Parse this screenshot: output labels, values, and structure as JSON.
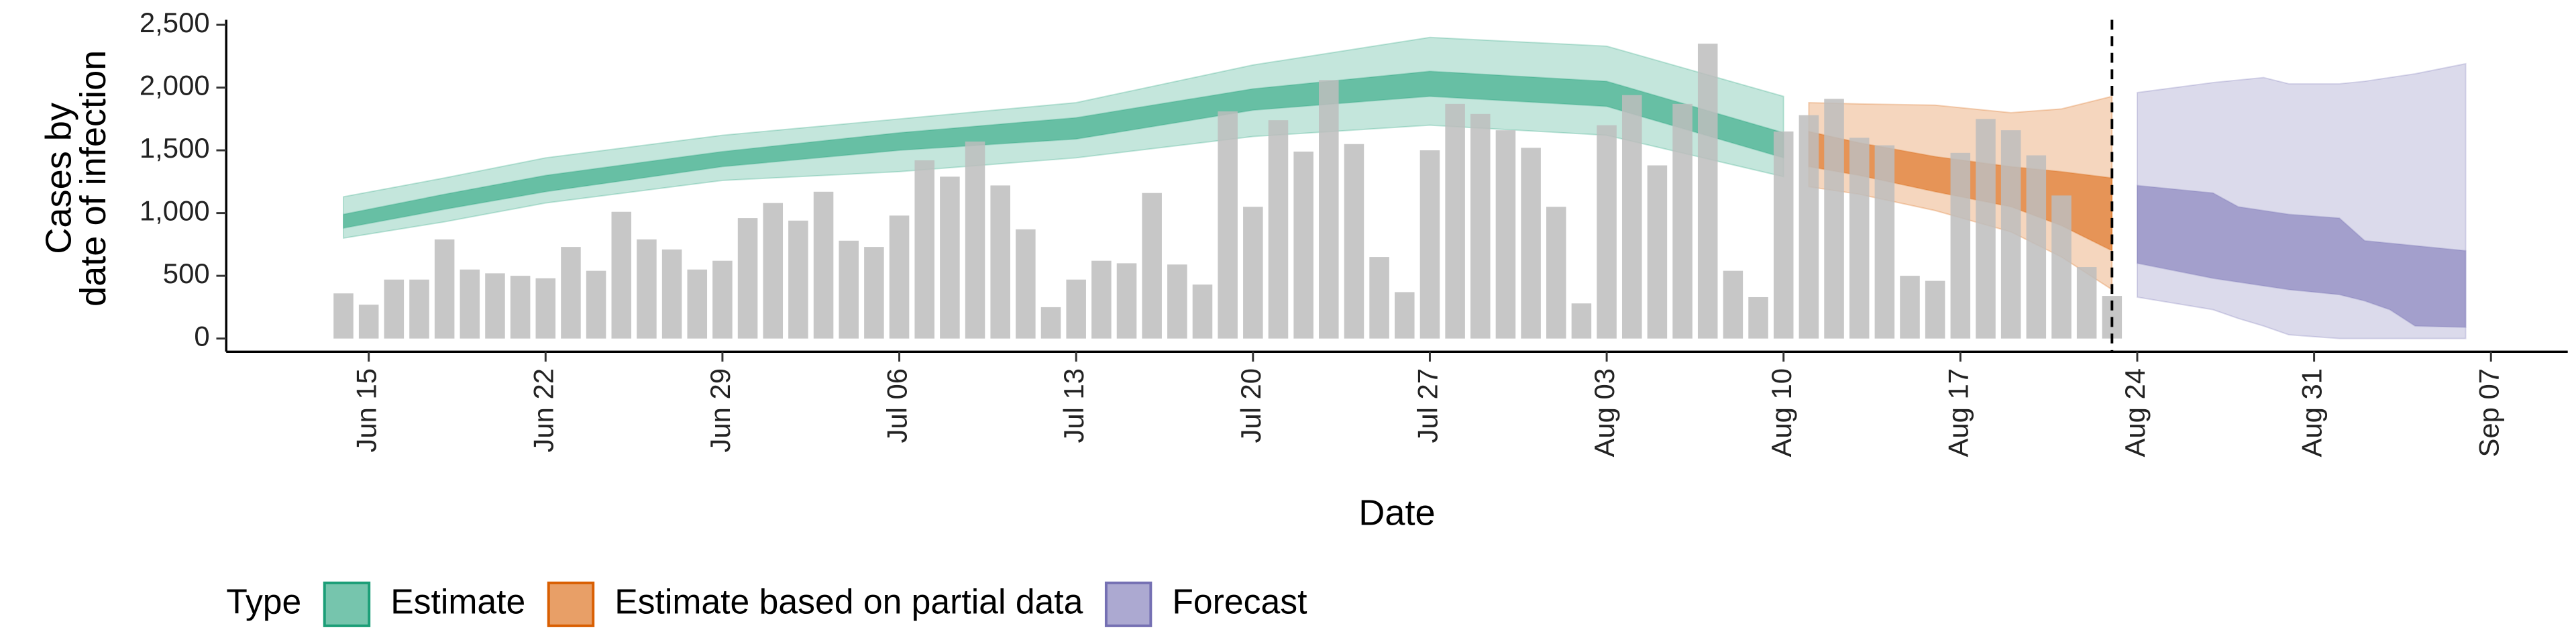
{
  "chart_data": {
    "type": "bar",
    "x_label": "Date",
    "y_label": [
      "Cases by",
      "date of infection"
    ],
    "legend_title": "Type",
    "x": [
      "Jun 14",
      "Jun 15",
      "Jun 16",
      "Jun 17",
      "Jun 18",
      "Jun 19",
      "Jun 20",
      "Jun 21",
      "Jun 22",
      "Jun 23",
      "Jun 24",
      "Jun 25",
      "Jun 26",
      "Jun 27",
      "Jun 28",
      "Jun 29",
      "Jun 30",
      "Jul 01",
      "Jul 02",
      "Jul 03",
      "Jul 04",
      "Jul 05",
      "Jul 06",
      "Jul 07",
      "Jul 08",
      "Jul 09",
      "Jul 10",
      "Jul 11",
      "Jul 12",
      "Jul 13",
      "Jul 14",
      "Jul 15",
      "Jul 16",
      "Jul 17",
      "Jul 18",
      "Jul 19",
      "Jul 20",
      "Jul 21",
      "Jul 22",
      "Jul 23",
      "Jul 24",
      "Jul 25",
      "Jul 26",
      "Jul 27",
      "Jul 28",
      "Jul 29",
      "Jul 30",
      "Jul 31",
      "Aug 01",
      "Aug 02",
      "Aug 03",
      "Aug 04",
      "Aug 05",
      "Aug 06",
      "Aug 07",
      "Aug 08",
      "Aug 09",
      "Aug 10",
      "Aug 11",
      "Aug 12",
      "Aug 13",
      "Aug 14",
      "Aug 15",
      "Aug 16",
      "Aug 17",
      "Aug 18",
      "Aug 19",
      "Aug 20",
      "Aug 21",
      "Aug 22",
      "Aug 23",
      "Aug 24",
      "Aug 25",
      "Aug 26",
      "Aug 27",
      "Aug 28",
      "Aug 29",
      "Aug 30",
      "Aug 31",
      "Sep 01",
      "Sep 02",
      "Sep 03",
      "Sep 04",
      "Sep 05",
      "Sep 06",
      "Sep 07"
    ],
    "values": [
      360,
      270,
      470,
      470,
      790,
      550,
      520,
      500,
      480,
      730,
      540,
      1010,
      790,
      710,
      550,
      620,
      960,
      1080,
      940,
      1170,
      780,
      730,
      980,
      1420,
      1290,
      1570,
      1220,
      870,
      250,
      470,
      620,
      600,
      1160,
      590,
      430,
      1810,
      1050,
      1740,
      1490,
      2060,
      1550,
      650,
      370,
      1500,
      1870,
      1790,
      1660,
      1520,
      1050,
      280,
      1700,
      1940,
      1380,
      1870,
      2350,
      540,
      330,
      1650,
      1780,
      1910,
      1600,
      1540,
      500,
      460,
      1480,
      1750,
      1660,
      1460,
      1140,
      570,
      340,
      null,
      null,
      null,
      null,
      null,
      null,
      null,
      null,
      null,
      null,
      null,
      null,
      null,
      null,
      null
    ],
    "color": "#bdbdbd",
    "ribbons": [
      {
        "name": "Estimate",
        "color": "#1b9e77",
        "x": [
          "Jun 14",
          "Jun 18",
          "Jun 22",
          "Jun 29",
          "Jul 06",
          "Jul 13",
          "Jul 20",
          "Jul 27",
          "Aug 03",
          "Aug 10"
        ],
        "lower_90": [
          800,
          930,
          1080,
          1260,
          1330,
          1440,
          1610,
          1700,
          1620,
          1290
        ],
        "lower_50": [
          880,
          1030,
          1170,
          1370,
          1500,
          1590,
          1820,
          1930,
          1850,
          1440
        ],
        "upper_50": [
          990,
          1150,
          1300,
          1490,
          1640,
          1760,
          1990,
          2130,
          2050,
          1640
        ],
        "upper_90": [
          1130,
          1280,
          1440,
          1620,
          1750,
          1880,
          2180,
          2400,
          2330,
          1930
        ]
      },
      {
        "name": "Estimate based on partial data",
        "color": "#d95f02",
        "x": [
          "Aug 11",
          "Aug 13",
          "Aug 16",
          "Aug 19",
          "Aug 21",
          "Aug 23"
        ],
        "lower_90": [
          1210,
          1150,
          1020,
          850,
          650,
          390
        ],
        "lower_50": [
          1370,
          1300,
          1170,
          1050,
          900,
          700
        ],
        "upper_50": [
          1650,
          1560,
          1450,
          1370,
          1330,
          1280
        ],
        "upper_90": [
          1880,
          1870,
          1860,
          1800,
          1830,
          1930
        ]
      },
      {
        "name": "Forecast",
        "color": "#7570b3",
        "x": [
          "Aug 24",
          "Aug 27",
          "Aug 28",
          "Aug 29",
          "Aug 30",
          "Sep 01",
          "Sep 02",
          "Sep 03",
          "Sep 04",
          "Sep 06"
        ],
        "lower_90": [
          330,
          230,
          160,
          100,
          30,
          0,
          0,
          0,
          0,
          0
        ],
        "lower_50": [
          600,
          480,
          450,
          420,
          390,
          350,
          300,
          230,
          100,
          90
        ],
        "upper_50": [
          1220,
          1160,
          1050,
          1020,
          990,
          960,
          780,
          760,
          740,
          700
        ],
        "upper_90": [
          1960,
          2040,
          2060,
          2080,
          2030,
          2030,
          2050,
          2080,
          2110,
          2190
        ]
      }
    ],
    "cutoff": "Aug 23",
    "xticks": [
      "Jun 15",
      "Jun 22",
      "Jun 29",
      "Jul 06",
      "Jul 13",
      "Jul 20",
      "Jul 27",
      "Aug 03",
      "Aug 10",
      "Aug 17",
      "Aug 24",
      "Aug 31",
      "Sep 07"
    ],
    "ylim": [
      -105,
      2540
    ],
    "yticks": [
      0,
      500,
      {
        "value": 1000,
        "label": "1,000"
      },
      {
        "value": 1500,
        "label": "1,500"
      },
      {
        "value": 2000,
        "label": "2,000"
      },
      {
        "value": 2500,
        "label": "2,500"
      }
    ]
  }
}
